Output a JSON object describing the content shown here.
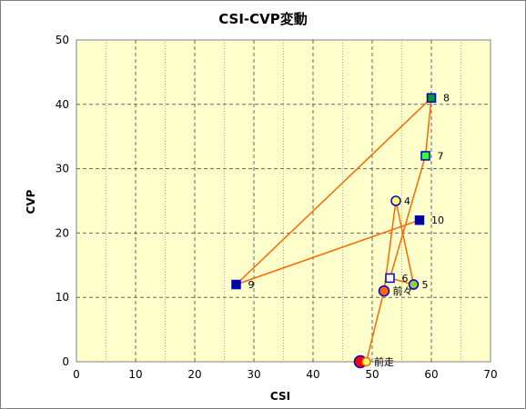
{
  "chart_data": {
    "type": "scatter",
    "title": "CSI-CVP変動",
    "xlabel": "CSI",
    "ylabel": "CVP",
    "xlim": [
      0,
      70
    ],
    "ylim": [
      0,
      50
    ],
    "xticks": [
      0,
      10,
      20,
      30,
      40,
      50,
      60,
      70
    ],
    "yticks": [
      0,
      10,
      20,
      30,
      40,
      50
    ],
    "grid": true,
    "plot_background": "#ffffcc",
    "line_color": "#ff6600",
    "points": [
      {
        "label": "",
        "x": 48,
        "y": 0,
        "marker": "circle",
        "fill": "#ff0000",
        "stroke": "#0000cc",
        "size": 6.5
      },
      {
        "label": "前走",
        "x": 49,
        "y": 0,
        "marker": "circle",
        "fill": "#ffff66",
        "stroke": "#ff6600",
        "size": 4.5
      },
      {
        "label": "前々",
        "x": 52,
        "y": 11,
        "marker": "circle",
        "fill": "#ff6600",
        "stroke": "#0000cc",
        "size": 5.5
      },
      {
        "label": "4",
        "x": 54,
        "y": 25,
        "marker": "circle",
        "fill": "#ffff66",
        "stroke": "#0000cc",
        "size": 5
      },
      {
        "label": "5",
        "x": 57,
        "y": 12,
        "marker": "circle",
        "fill": "#99cc33",
        "stroke": "#0000cc",
        "size": 5
      },
      {
        "label": "6",
        "x": 53,
        "y": 13,
        "marker": "square",
        "fill": "#ffffff",
        "stroke": "#0000cc",
        "size": 9
      },
      {
        "label": "7",
        "x": 59,
        "y": 32,
        "marker": "square",
        "fill": "#33ff33",
        "stroke": "#0000cc",
        "size": 9
      },
      {
        "label": "8",
        "x": 60,
        "y": 41,
        "marker": "square",
        "fill": "#009933",
        "stroke": "#0000cc",
        "size": 9
      },
      {
        "label": "9",
        "x": 27,
        "y": 12,
        "marker": "square",
        "fill": "#000099",
        "stroke": "#0000cc",
        "size": 9
      },
      {
        "label": "10",
        "x": 58,
        "y": 22,
        "marker": "square",
        "fill": "#000099",
        "stroke": "#0000cc",
        "size": 9
      }
    ]
  }
}
